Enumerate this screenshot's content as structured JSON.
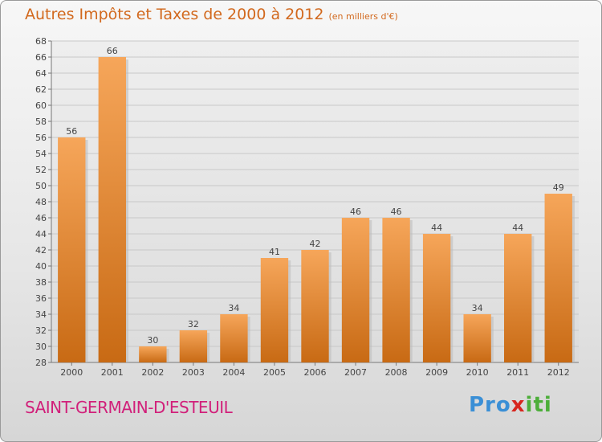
{
  "title": "Autres Impôts et Taxes de 2000 à 2012",
  "subtitle": "(en milliers d'€)",
  "commune": "SAINT-GERMAIN-D'ESTEUIL",
  "logo": {
    "p1": "Pro",
    "p2": "x",
    "p3": "iti"
  },
  "colors": {
    "bar_top": "#f6a65a",
    "bar_bottom": "#c86a14",
    "title": "#d2691e",
    "commune": "#d1207a"
  },
  "chart_data": {
    "type": "bar",
    "categories": [
      "2000",
      "2001",
      "2002",
      "2003",
      "2004",
      "2005",
      "2006",
      "2007",
      "2008",
      "2009",
      "2010",
      "2011",
      "2012"
    ],
    "values": [
      56,
      66,
      30,
      32,
      34,
      41,
      42,
      46,
      46,
      44,
      34,
      44,
      49
    ],
    "ylim": [
      28,
      68
    ],
    "yticks": [
      28,
      30,
      32,
      34,
      36,
      38,
      40,
      42,
      44,
      46,
      48,
      50,
      52,
      54,
      56,
      58,
      60,
      62,
      64,
      66,
      68
    ],
    "grid": true,
    "xlabel": "",
    "ylabel": ""
  }
}
